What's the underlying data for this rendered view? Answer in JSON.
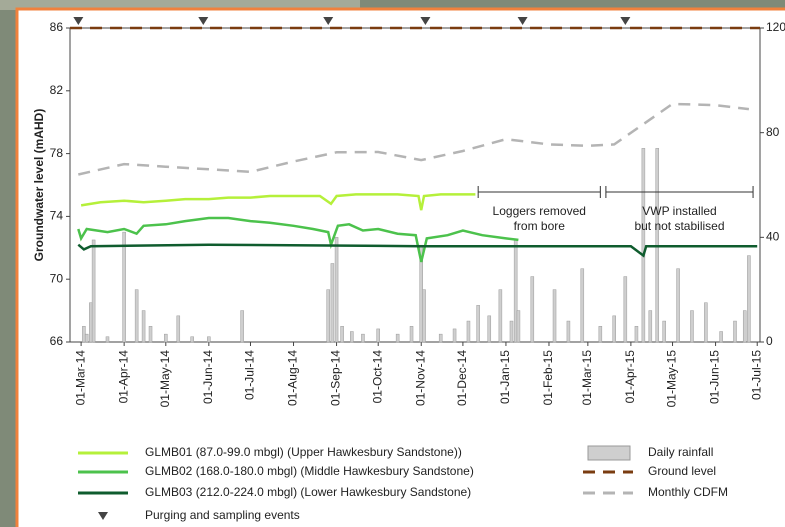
{
  "chart_data": {
    "type": "line",
    "ylabel": "Groundwater level (mAHD)",
    "ylim": [
      66,
      86
    ],
    "yticks": [
      66,
      70,
      74,
      78,
      82,
      86
    ],
    "y2lim": [
      0,
      120
    ],
    "y2ticks": [
      0,
      40,
      80,
      120
    ],
    "xlim": [
      "2014-02-21",
      "2015-07-03"
    ],
    "xticks": [
      {
        "value": "2014-03-01",
        "label": "01-Mar-14"
      },
      {
        "value": "2014-04-01",
        "label": "01-Apr-14"
      },
      {
        "value": "2014-05-01",
        "label": "01-May-14"
      },
      {
        "value": "2014-06-01",
        "label": "01-Jun-14"
      },
      {
        "value": "2014-07-01",
        "label": "01-Jul-14"
      },
      {
        "value": "2014-08-01",
        "label": "01-Aug-14"
      },
      {
        "value": "2014-09-01",
        "label": "01-Sep-14"
      },
      {
        "value": "2014-10-01",
        "label": "01-Oct-14"
      },
      {
        "value": "2014-11-01",
        "label": "01-Nov-14"
      },
      {
        "value": "2014-12-01",
        "label": "01-Dec-14"
      },
      {
        "value": "2015-01-01",
        "label": "01-Jan-15"
      },
      {
        "value": "2015-02-01",
        "label": "01-Feb-15"
      },
      {
        "value": "2015-03-01",
        "label": "01-Mar-15"
      },
      {
        "value": "2015-04-01",
        "label": "01-Apr-15"
      },
      {
        "value": "2015-05-01",
        "label": "01-May-15"
      },
      {
        "value": "2015-06-01",
        "label": "01-Jun-15"
      },
      {
        "value": "2015-07-01",
        "label": "01-Jul-15"
      }
    ],
    "series": [
      {
        "name": "Daily rainfall",
        "type": "bar",
        "axis": "y2",
        "color": "#cfcfcf",
        "x": [
          "2014-03-03",
          "2014-03-05",
          "2014-03-08",
          "2014-03-10",
          "2014-03-20",
          "2014-04-01",
          "2014-04-10",
          "2014-04-15",
          "2014-04-20",
          "2014-05-01",
          "2014-05-10",
          "2014-05-20",
          "2014-06-01",
          "2014-06-25",
          "2014-08-26",
          "2014-08-29",
          "2014-09-01",
          "2014-09-05",
          "2014-09-12",
          "2014-09-20",
          "2014-10-01",
          "2014-10-15",
          "2014-10-25",
          "2014-11-01",
          "2014-11-03",
          "2014-11-15",
          "2014-11-25",
          "2014-12-05",
          "2014-12-12",
          "2014-12-20",
          "2014-12-28",
          "2015-01-05",
          "2015-01-08",
          "2015-01-10",
          "2015-01-20",
          "2015-02-05",
          "2015-02-15",
          "2015-02-25",
          "2015-03-10",
          "2015-03-20",
          "2015-03-28",
          "2015-04-05",
          "2015-04-10",
          "2015-04-15",
          "2015-04-20",
          "2015-04-25",
          "2015-05-05",
          "2015-05-15",
          "2015-05-25",
          "2015-06-05",
          "2015-06-15",
          "2015-06-22",
          "2015-06-25"
        ],
        "values": [
          6,
          3,
          15,
          39,
          2,
          42,
          20,
          12,
          6,
          3,
          10,
          2,
          2,
          12,
          20,
          30,
          40,
          6,
          4,
          3,
          5,
          3,
          6,
          37,
          20,
          3,
          5,
          8,
          14,
          10,
          20,
          8,
          39,
          12,
          25,
          20,
          8,
          28,
          6,
          10,
          25,
          6,
          74,
          12,
          74,
          8,
          28,
          12,
          15,
          4,
          8,
          12,
          33
        ]
      },
      {
        "name": "GLMB01 (87.0-99.0 mbgl) (Upper Hawkesbury Sandstone))",
        "color": "#b5f03a",
        "x": [
          "2014-03-01",
          "2014-03-15",
          "2014-04-01",
          "2014-04-15",
          "2014-05-01",
          "2014-05-15",
          "2014-06-01",
          "2014-06-15",
          "2014-07-01",
          "2014-07-15",
          "2014-08-01",
          "2014-08-20",
          "2014-08-28",
          "2014-09-01",
          "2014-09-15",
          "2014-10-01",
          "2014-10-15",
          "2014-10-30",
          "2014-11-01",
          "2014-11-03",
          "2014-11-15",
          "2014-12-01",
          "2014-12-10"
        ],
        "values": [
          74.7,
          74.9,
          75.0,
          74.9,
          75.0,
          75.1,
          75.1,
          75.2,
          75.2,
          75.3,
          75.3,
          75.3,
          74.8,
          75.3,
          75.4,
          75.4,
          75.4,
          75.3,
          74.4,
          75.3,
          75.4,
          75.4,
          75.4
        ]
      },
      {
        "name": "GLMB02 (168.0-180.0 mbgl) (Middle Hawkesbury Sandstone)",
        "color": "#4cc24c",
        "x": [
          "2014-02-27",
          "2014-03-01",
          "2014-03-05",
          "2014-03-20",
          "2014-04-01",
          "2014-04-10",
          "2014-04-15",
          "2014-05-01",
          "2014-05-15",
          "2014-06-01",
          "2014-06-15",
          "2014-07-01",
          "2014-07-15",
          "2014-08-01",
          "2014-08-15",
          "2014-08-26",
          "2014-08-28",
          "2014-09-02",
          "2014-09-10",
          "2014-09-20",
          "2014-10-01",
          "2014-10-15",
          "2014-10-28",
          "2014-11-01",
          "2014-11-05",
          "2014-11-20",
          "2014-12-01",
          "2014-12-15",
          "2015-01-01",
          "2015-01-10"
        ],
        "values": [
          73.2,
          72.6,
          73.2,
          73.0,
          73.2,
          72.9,
          73.4,
          73.5,
          73.7,
          73.9,
          73.9,
          73.7,
          73.6,
          73.4,
          73.2,
          73.0,
          72.2,
          73.4,
          73.5,
          73.1,
          73.2,
          72.9,
          72.8,
          71.1,
          72.6,
          72.8,
          73.1,
          72.8,
          72.6,
          72.5
        ]
      },
      {
        "name": "GLMB03 (212.0-224.0 mbgl) (Lower Hawkesbury Sandstone)",
        "color": "#0f5c2e",
        "x": [
          "2014-02-27",
          "2014-03-03",
          "2014-03-08",
          "2014-06-01",
          "2014-11-01",
          "2015-01-10",
          "2015-04-01",
          "2015-04-10",
          "2015-04-12",
          "2015-07-01"
        ],
        "values": [
          72.2,
          71.9,
          72.1,
          72.2,
          72.1,
          72.1,
          72.1,
          71.5,
          72.1,
          72.1
        ]
      },
      {
        "name": "Ground level",
        "color": "#7a3c10",
        "dash": true,
        "x": [
          "2014-02-21",
          "2015-07-03"
        ],
        "values": [
          86,
          86
        ]
      },
      {
        "name": "Monthly CDFM",
        "color": "#b4b4b4",
        "dash": true,
        "axis": "y2",
        "x": [
          "2014-02-27",
          "2014-04-01",
          "2014-05-01",
          "2014-06-01",
          "2014-07-01",
          "2014-08-01",
          "2014-09-01",
          "2014-10-01",
          "2014-11-01",
          "2014-12-01",
          "2015-01-01",
          "2015-02-01",
          "2015-03-01",
          "2015-03-20",
          "2015-05-01",
          "2015-06-01",
          "2015-06-25"
        ],
        "values": [
          64,
          68,
          67,
          66,
          65,
          69,
          72.5,
          72.6,
          69.5,
          73,
          77.5,
          75.5,
          75,
          75.5,
          91,
          90.5,
          89
        ]
      }
    ],
    "events": {
      "name": "Purging and sampling events",
      "x": [
        "2014-02-27",
        "2014-05-28",
        "2014-08-26",
        "2014-11-04",
        "2015-01-13",
        "2015-03-28"
      ]
    },
    "annotations": [
      {
        "text": [
          "Loggers removed",
          "from bore"
        ],
        "from": "2014-12-12",
        "to": "2015-03-10"
      },
      {
        "text": [
          "VWP installed",
          "but not stabilised"
        ],
        "from": "2015-03-14",
        "to": "2015-06-28"
      }
    ]
  }
}
